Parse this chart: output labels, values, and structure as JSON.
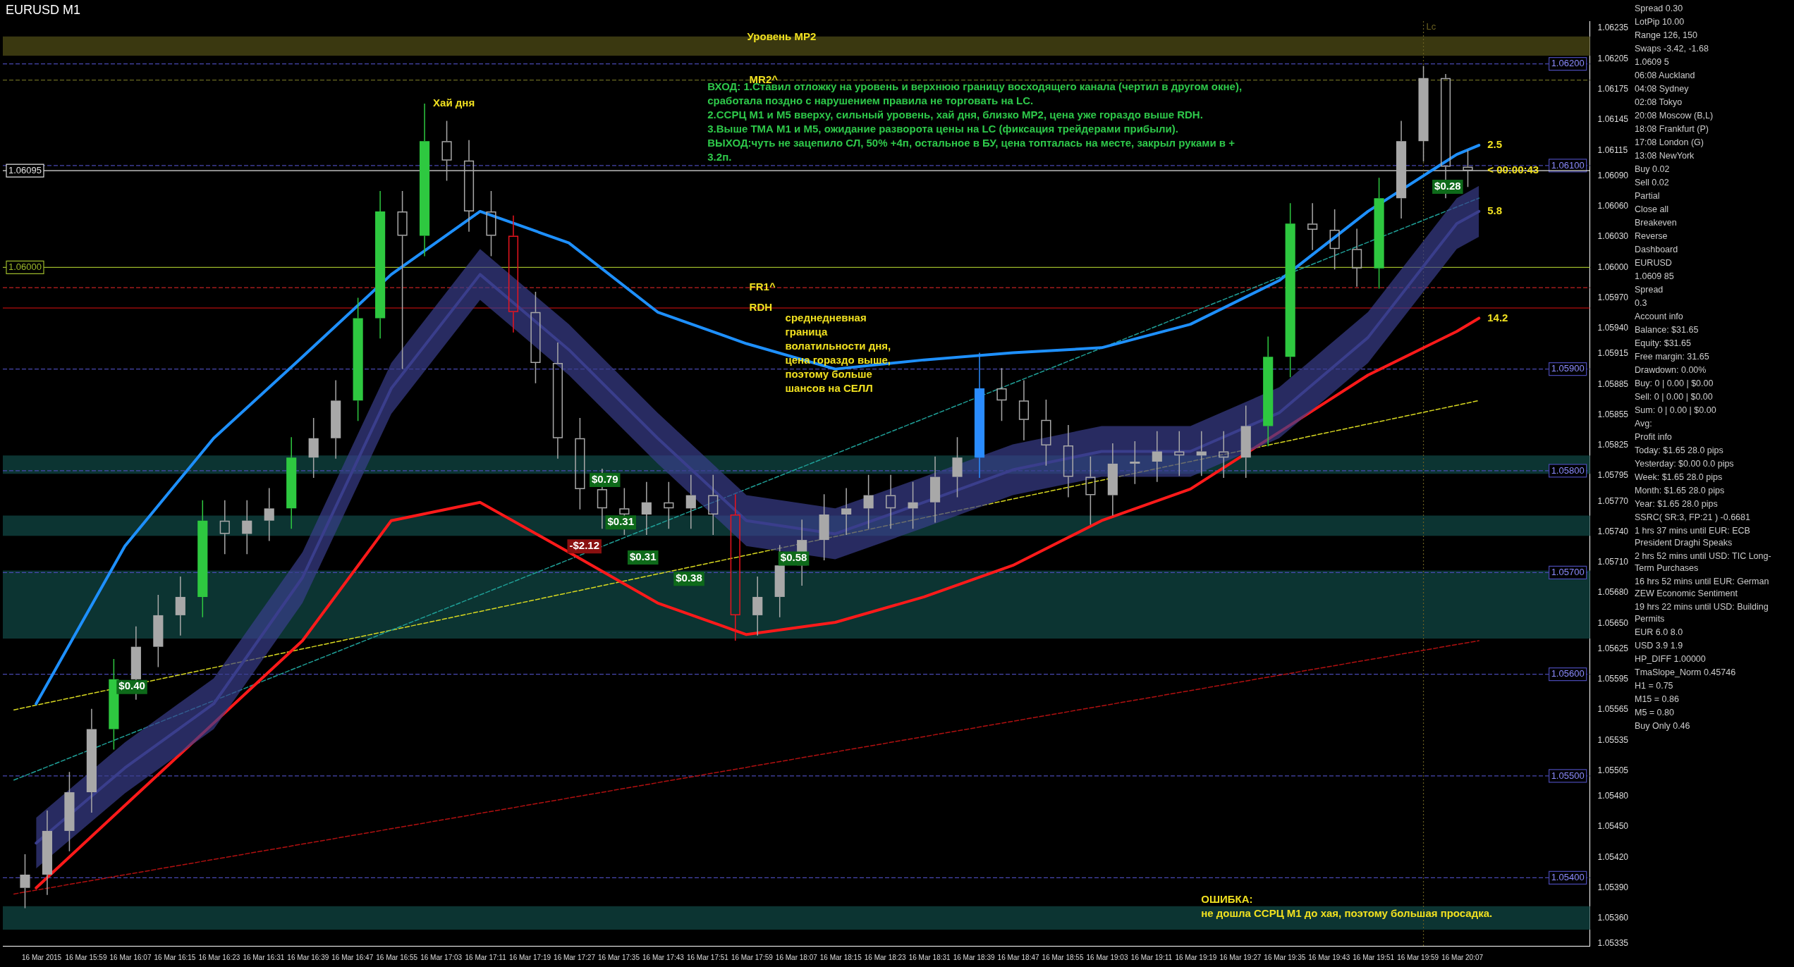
{
  "chart_data": {
    "type": "candlestick",
    "title": "EURUSD M1",
    "x": [
      "2015-03-16T15:48",
      "2015-03-16T15:52",
      "2015-03-16T15:56",
      "2015-03-16T16:00",
      "2015-03-16T16:04",
      "2015-03-16T16:08",
      "2015-03-16T16:12",
      "2015-03-16T16:16",
      "2015-03-16T16:20",
      "2015-03-16T16:24",
      "2015-03-16T16:28",
      "2015-03-16T16:32",
      "2015-03-16T16:36",
      "2015-03-16T16:40",
      "2015-03-16T16:44",
      "2015-03-16T16:48",
      "2015-03-16T16:52",
      "2015-03-16T16:56",
      "2015-03-16T17:00",
      "2015-03-16T17:04",
      "2015-03-16T17:08",
      "2015-03-16T17:12",
      "2015-03-16T17:16",
      "2015-03-16T17:20",
      "2015-03-16T17:24",
      "2015-03-16T17:28",
      "2015-03-16T17:32",
      "2015-03-16T17:36",
      "2015-03-16T17:40",
      "2015-03-16T17:44",
      "2015-03-16T17:48",
      "2015-03-16T17:52",
      "2015-03-16T17:56",
      "2015-03-16T18:00",
      "2015-03-16T18:04",
      "2015-03-16T18:08",
      "2015-03-16T18:12",
      "2015-03-16T18:16",
      "2015-03-16T18:20",
      "2015-03-16T18:24",
      "2015-03-16T18:28",
      "2015-03-16T18:32",
      "2015-03-16T18:36",
      "2015-03-16T18:40",
      "2015-03-16T18:44",
      "2015-03-16T18:48",
      "2015-03-16T18:52",
      "2015-03-16T18:56",
      "2015-03-16T19:00",
      "2015-03-16T19:04",
      "2015-03-16T19:08",
      "2015-03-16T19:12",
      "2015-03-16T19:16",
      "2015-03-16T19:20",
      "2015-03-16T19:24",
      "2015-03-16T19:28",
      "2015-03-16T19:32",
      "2015-03-16T19:36",
      "2015-03-16T19:40",
      "2015-03-16T19:44",
      "2015-03-16T19:48",
      "2015-03-16T19:52",
      "2015-03-16T19:56",
      "2015-03-16T20:00",
      "2015-03-16T20:04",
      "2015-03-16T20:08"
    ],
    "ohlc": [
      [
        1.0539,
        1.05423,
        1.0537,
        1.05403
      ],
      [
        1.05403,
        1.05466,
        1.05383,
        1.05446
      ],
      [
        1.05446,
        1.05504,
        1.05426,
        1.05484
      ],
      [
        1.05484,
        1.05566,
        1.05464,
        1.05546
      ],
      [
        1.05546,
        1.05615,
        1.05526,
        1.05595
      ],
      [
        1.05595,
        1.05647,
        1.05575,
        1.05627
      ],
      [
        1.05627,
        1.05678,
        1.05607,
        1.05658
      ],
      [
        1.05658,
        1.05696,
        1.05638,
        1.05676
      ],
      [
        1.05676,
        1.05771,
        1.05656,
        1.05751
      ],
      [
        1.05751,
        1.05771,
        1.05718,
        1.05738
      ],
      [
        1.05738,
        1.05771,
        1.05718,
        1.05751
      ],
      [
        1.05751,
        1.05783,
        1.05731,
        1.05763
      ],
      [
        1.05763,
        1.05833,
        1.05743,
        1.05813
      ],
      [
        1.05813,
        1.05852,
        1.05793,
        1.05832
      ],
      [
        1.05832,
        1.05889,
        1.05812,
        1.05869
      ],
      [
        1.05869,
        1.0597,
        1.05849,
        1.0595
      ],
      [
        1.0595,
        1.06075,
        1.0593,
        1.06055
      ],
      [
        1.06055,
        1.06075,
        1.059,
        1.06031
      ],
      [
        1.06031,
        1.06161,
        1.06011,
        1.06124
      ],
      [
        1.06124,
        1.06144,
        1.06085,
        1.06105
      ],
      [
        1.06105,
        1.06125,
        1.06035,
        1.06055
      ],
      [
        1.06055,
        1.06075,
        1.06011,
        1.06031
      ],
      [
        1.06031,
        1.06051,
        1.05936,
        1.05956
      ],
      [
        1.05956,
        1.05976,
        1.05886,
        1.05906
      ],
      [
        1.05906,
        1.05926,
        1.05812,
        1.05832
      ],
      [
        1.05832,
        1.05852,
        1.05762,
        1.05782
      ],
      [
        1.05782,
        1.05802,
        1.05743,
        1.05763
      ],
      [
        1.05763,
        1.05783,
        1.05737,
        1.05757
      ],
      [
        1.05757,
        1.05789,
        1.05737,
        1.05769
      ],
      [
        1.05769,
        1.05789,
        1.05743,
        1.05763
      ],
      [
        1.05763,
        1.05796,
        1.05743,
        1.05776
      ],
      [
        1.05776,
        1.05796,
        1.05737,
        1.05757
      ],
      [
        1.05757,
        1.05777,
        1.05633,
        1.05658
      ],
      [
        1.05658,
        1.05696,
        1.05638,
        1.05676
      ],
      [
        1.05676,
        1.05727,
        1.05656,
        1.05707
      ],
      [
        1.05707,
        1.05752,
        1.05687,
        1.05732
      ],
      [
        1.05732,
        1.05777,
        1.05712,
        1.05757
      ],
      [
        1.05757,
        1.05783,
        1.05737,
        1.05763
      ],
      [
        1.05763,
        1.05796,
        1.05743,
        1.05776
      ],
      [
        1.05776,
        1.05796,
        1.05743,
        1.05763
      ],
      [
        1.05763,
        1.05789,
        1.05743,
        1.05769
      ],
      [
        1.05769,
        1.05814,
        1.05749,
        1.05794
      ],
      [
        1.05794,
        1.05833,
        1.05774,
        1.05813
      ],
      [
        1.05813,
        1.05916,
        1.05793,
        1.05881
      ],
      [
        1.05881,
        1.05901,
        1.05849,
        1.05869
      ],
      [
        1.05869,
        1.05889,
        1.0583,
        1.0585
      ],
      [
        1.0585,
        1.0587,
        1.05805,
        1.05825
      ],
      [
        1.05825,
        1.05845,
        1.05774,
        1.05794
      ],
      [
        1.05794,
        1.05814,
        1.05747,
        1.05776
      ],
      [
        1.05776,
        1.05827,
        1.05756,
        1.05807
      ],
      [
        1.05807,
        1.05829,
        1.05787,
        1.05809
      ],
      [
        1.05809,
        1.05839,
        1.05789,
        1.05819
      ],
      [
        1.05819,
        1.05839,
        1.05795,
        1.05815
      ],
      [
        1.05815,
        1.05839,
        1.05795,
        1.05819
      ],
      [
        1.05819,
        1.05839,
        1.05793,
        1.05813
      ],
      [
        1.05813,
        1.05864,
        1.05793,
        1.05844
      ],
      [
        1.05844,
        1.05932,
        1.05824,
        1.05912
      ],
      [
        1.05912,
        1.06063,
        1.05892,
        1.06043
      ],
      [
        1.06043,
        1.06063,
        1.06017,
        1.06037
      ],
      [
        1.06037,
        1.06057,
        1.05998,
        1.06018
      ],
      [
        1.06018,
        1.06038,
        1.05981,
        1.05999
      ],
      [
        1.05999,
        1.06088,
        1.05979,
        1.06068
      ],
      [
        1.06068,
        1.06144,
        1.06048,
        1.06124
      ],
      [
        1.06124,
        1.06198,
        1.06104,
        1.06186
      ],
      [
        1.06186,
        1.0619,
        1.06068,
        1.06099
      ],
      [
        1.06099,
        1.06115,
        1.06079,
        1.06095
      ]
    ],
    "colors": [
      "#a8a8a8",
      "#a8a8a8",
      "#a8a8a8",
      "#a8a8a8",
      "#2ec840",
      "#a8a8a8",
      "#a8a8a8",
      "#a8a8a8",
      "#2ec840",
      "#a8a8a8",
      "#a8a8a8",
      "#a8a8a8",
      "#2ec840",
      "#a8a8a8",
      "#a8a8a8",
      "#2ec840",
      "#2ec840",
      "#a8a8a8",
      "#2ec840",
      "#a8a8a8",
      "#a8a8a8",
      "#a8a8a8",
      "#e8141e",
      "#a8a8a8",
      "#a8a8a8",
      "#a8a8a8",
      "#a8a8a8",
      "#a8a8a8",
      "#a8a8a8",
      "#a8a8a8",
      "#a8a8a8",
      "#a8a8a8",
      "#e8141e",
      "#a8a8a8",
      "#a8a8a8",
      "#a8a8a8",
      "#a8a8a8",
      "#a8a8a8",
      "#a8a8a8",
      "#a8a8a8",
      "#a8a8a8",
      "#a8a8a8",
      "#a8a8a8",
      "#2a8cff",
      "#a8a8a8",
      "#a8a8a8",
      "#a8a8a8",
      "#a8a8a8",
      "#a8a8a8",
      "#a8a8a8",
      "#a8a8a8",
      "#a8a8a8",
      "#a8a8a8",
      "#a8a8a8",
      "#a8a8a8",
      "#a8a8a8",
      "#2ec840",
      "#2ec840",
      "#a8a8a8",
      "#a8a8a8",
      "#a8a8a8",
      "#2ec840",
      "#a8a8a8",
      "#a8a8a8",
      "#a8a8a8",
      "#a8a8a8"
    ],
    "series": [
      {
        "type": "line",
        "color": "#3a3e8c",
        "x": [
          "2015-03-16T15:50",
          "2015-03-16T16:06",
          "2015-03-16T16:22",
          "2015-03-16T16:38",
          "2015-03-16T16:54",
          "2015-03-16T17:10",
          "2015-03-16T17:26",
          "2015-03-16T17:42",
          "2015-03-16T17:58",
          "2015-03-16T18:14",
          "2015-03-16T18:30",
          "2015-03-16T18:46",
          "2015-03-16T19:02",
          "2015-03-16T19:18",
          "2015-03-16T19:34",
          "2015-03-16T19:50",
          "2015-03-16T20:06",
          "2015-03-16T20:10"
        ],
        "values": [
          1.05434,
          1.05508,
          1.05571,
          1.05695,
          1.05881,
          1.05993,
          1.05919,
          1.05832,
          1.05751,
          1.05738,
          1.05769,
          1.05801,
          1.05819,
          1.05819,
          1.05857,
          1.05931,
          1.06043,
          1.06055
        ],
        "lower": [
          1.05409,
          1.05483,
          1.05546,
          1.0567,
          1.05856,
          1.05968,
          1.05894,
          1.05807,
          1.05726,
          1.05713,
          1.05744,
          1.05776,
          1.05794,
          1.05794,
          1.05832,
          1.05906,
          1.06018,
          1.0603
        ],
        "upper": [
          1.05459,
          1.05533,
          1.05596,
          1.0572,
          1.05906,
          1.06018,
          1.05944,
          1.05857,
          1.05776,
          1.05763,
          1.05794,
          1.05826,
          1.05844,
          1.05844,
          1.05882,
          1.05956,
          1.06068,
          1.0608
        ]
      },
      {
        "type": "line",
        "color": "#1e90ff",
        "x": [
          "2015-03-16T15:50",
          "2015-03-16T16:06",
          "2015-03-16T16:22",
          "2015-03-16T16:38",
          "2015-03-16T16:54",
          "2015-03-16T17:10",
          "2015-03-16T17:26",
          "2015-03-16T17:42",
          "2015-03-16T17:58",
          "2015-03-16T18:14",
          "2015-03-16T18:30",
          "2015-03-16T18:46",
          "2015-03-16T19:02",
          "2015-03-16T19:18",
          "2015-03-16T19:34",
          "2015-03-16T19:50",
          "2015-03-16T20:06",
          "2015-03-16T20:10"
        ],
        "values": [
          1.05571,
          1.05726,
          1.05832,
          1.05912,
          1.05993,
          1.06055,
          1.06024,
          1.05956,
          1.05925,
          1.059,
          1.05909,
          1.05916,
          1.05921,
          1.05944,
          1.05987,
          1.06055,
          1.06111,
          1.0612
        ]
      },
      {
        "type": "line",
        "color": "#ff1a1a",
        "x": [
          "2015-03-16T15:50",
          "2015-03-16T16:06",
          "2015-03-16T16:22",
          "2015-03-16T16:38",
          "2015-03-16T16:54",
          "2015-03-16T17:10",
          "2015-03-16T17:26",
          "2015-03-16T17:42",
          "2015-03-16T17:58",
          "2015-03-16T18:14",
          "2015-03-16T18:30",
          "2015-03-16T18:46",
          "2015-03-16T19:02",
          "2015-03-16T19:18",
          "2015-03-16T19:34",
          "2015-03-16T19:50",
          "2015-03-16T20:06",
          "2015-03-16T20:10"
        ],
        "values": [
          1.0539,
          1.05471,
          1.05552,
          1.05633,
          1.05751,
          1.05769,
          1.0572,
          1.0567,
          1.05639,
          1.05651,
          1.05676,
          1.05707,
          1.05751,
          1.05782,
          1.05838,
          1.05894,
          1.05937,
          1.0595
        ]
      },
      {
        "type": "line",
        "color": "#1f9e96",
        "line_style": "dashed",
        "x": [
          "2015-03-16T15:46",
          "2015-03-16T20:10"
        ],
        "values": [
          1.05496,
          1.06068
        ]
      },
      {
        "type": "line",
        "color": "#d8d820",
        "line_style": "dashed",
        "x": [
          "2015-03-16T15:46",
          "2015-03-16T20:10"
        ],
        "values": [
          1.05565,
          1.05869
        ]
      },
      {
        "type": "line",
        "color": "#b01010",
        "line_style": "dashed",
        "x": [
          "2015-03-16T15:46",
          "2015-03-16T20:10"
        ],
        "values": [
          1.05384,
          1.05633
        ]
      }
    ],
    "xlim": [
      "2015-03-16T15:44",
      "2015-03-16T20:30"
    ],
    "xticks": [
      {
        "value": "2015-03-16T15:51",
        "label": "16 Mar 2015"
      },
      {
        "value": "2015-03-16T15:59",
        "label": "16 Mar 15:59"
      },
      {
        "value": "2015-03-16T16:07",
        "label": "16 Mar 16:07"
      },
      {
        "value": "2015-03-16T16:15",
        "label": "16 Mar 16:15"
      },
      {
        "value": "2015-03-16T16:23",
        "label": "16 Mar 16:23"
      },
      {
        "value": "2015-03-16T16:31",
        "label": "16 Mar 16:31"
      },
      {
        "value": "2015-03-16T16:39",
        "label": "16 Mar 16:39"
      },
      {
        "value": "2015-03-16T16:47",
        "label": "16 Mar 16:47"
      },
      {
        "value": "2015-03-16T16:55",
        "label": "16 Mar 16:55"
      },
      {
        "value": "2015-03-16T17:03",
        "label": "16 Mar 17:03"
      },
      {
        "value": "2015-03-16T17:11",
        "label": "16 Mar 17:11"
      },
      {
        "value": "2015-03-16T17:19",
        "label": "16 Mar 17:19"
      },
      {
        "value": "2015-03-16T17:27",
        "label": "16 Mar 17:27"
      },
      {
        "value": "2015-03-16T17:35",
        "label": "16 Mar 17:35"
      },
      {
        "value": "2015-03-16T17:43",
        "label": "16 Mar 17:43"
      },
      {
        "value": "2015-03-16T17:51",
        "label": "16 Mar 17:51"
      },
      {
        "value": "2015-03-16T17:59",
        "label": "16 Mar 17:59"
      },
      {
        "value": "2015-03-16T18:07",
        "label": "16 Mar 18:07"
      },
      {
        "value": "2015-03-16T18:15",
        "label": "16 Mar 18:15"
      },
      {
        "value": "2015-03-16T18:23",
        "label": "16 Mar 18:23"
      },
      {
        "value": "2015-03-16T18:31",
        "label": "16 Mar 18:31"
      },
      {
        "value": "2015-03-16T18:39",
        "label": "16 Mar 18:39"
      },
      {
        "value": "2015-03-16T18:47",
        "label": "16 Mar 18:47"
      },
      {
        "value": "2015-03-16T18:55",
        "label": "16 Mar 18:55"
      },
      {
        "value": "2015-03-16T19:03",
        "label": "16 Mar 19:03"
      },
      {
        "value": "2015-03-16T19:11",
        "label": "16 Mar 19:11"
      },
      {
        "value": "2015-03-16T19:19",
        "label": "16 Mar 19:19"
      },
      {
        "value": "2015-03-16T19:27",
        "label": "16 Mar 19:27"
      },
      {
        "value": "2015-03-16T19:35",
        "label": "16 Mar 19:35"
      },
      {
        "value": "2015-03-16T19:43",
        "label": "16 Mar 19:43"
      },
      {
        "value": "2015-03-16T19:51",
        "label": "16 Mar 19:51"
      },
      {
        "value": "2015-03-16T19:59",
        "label": "16 Mar 19:59"
      },
      {
        "value": "2015-03-16T20:07",
        "label": "16 Mar 20:07"
      }
    ],
    "ylim": [
      1.05333,
      1.06242
    ],
    "yticks": [
      1.06235,
      1.06205,
      1.06175,
      1.06145,
      1.06115,
      {
        "value": 1.0609,
        "label": "1.06090"
      },
      {
        "value": 1.0606,
        "label": "1.06060"
      },
      {
        "value": 1.0603,
        "label": "1.06030"
      },
      {
        "value": 1.06,
        "label": "1.06000"
      },
      {
        "value": 1.0597,
        "label": "1.05970"
      },
      {
        "value": 1.0594,
        "label": "1.05940"
      },
      1.05915,
      1.05885,
      1.05855,
      1.05825,
      1.05795,
      {
        "value": 1.0577,
        "label": "1.05770"
      },
      {
        "value": 1.0574,
        "label": "1.05740"
      },
      {
        "value": 1.0571,
        "label": "1.05710"
      },
      {
        "value": 1.0568,
        "label": "1.05680"
      },
      {
        "value": 1.0565,
        "label": "1.05650"
      },
      1.05625,
      1.05595,
      1.05565,
      1.05535,
      1.05505,
      {
        "value": 1.0548,
        "label": "1.05480"
      },
      {
        "value": 1.0545,
        "label": "1.05450"
      },
      {
        "value": 1.0542,
        "label": "1.05420"
      },
      {
        "value": 1.0539,
        "label": "1.05390"
      },
      {
        "value": 1.0536,
        "label": "1.05360"
      },
      1.05335
    ],
    "ref_lines": [
      {
        "axis": "y",
        "value": 1.062,
        "label": "1.06200",
        "color": "#4848b0",
        "line_style": "dashed"
      },
      {
        "axis": "y",
        "value": 1.06184,
        "color": "#6a6a20",
        "line_style": "dashed"
      },
      {
        "axis": "y",
        "value": 1.061,
        "label": "1.06100",
        "color": "#4848b0",
        "line_style": "dashed"
      },
      {
        "axis": "y",
        "value": 1.06095,
        "label": "1.06095",
        "color": "#e0e0e0",
        "line_style": "solid"
      },
      {
        "axis": "y",
        "value": 1.06,
        "label": "1.06000",
        "color": "#9cb82a",
        "line_style": "solid"
      },
      {
        "axis": "y",
        "value": 1.0598,
        "color": "#c02020",
        "line_style": "dashed"
      },
      {
        "axis": "y",
        "value": 1.0596,
        "color": "#e01010",
        "line_style": "solid"
      },
      {
        "axis": "y",
        "value": 1.059,
        "label": "1.05900",
        "color": "#4848b0",
        "line_style": "dashed"
      },
      {
        "axis": "y",
        "value": 1.058,
        "label": "1.05800",
        "color": "#4848b0",
        "line_style": "dashed"
      },
      {
        "axis": "y",
        "value": 1.057,
        "label": "1.05700",
        "color": "#4848b0",
        "line_style": "dashed"
      },
      {
        "axis": "y",
        "value": 1.056,
        "label": "1.05600",
        "color": "#4848b0",
        "line_style": "dashed"
      },
      {
        "axis": "y",
        "value": 1.055,
        "label": "1.05500",
        "color": "#4848b0",
        "line_style": "dashed"
      },
      {
        "axis": "y",
        "value": 1.054,
        "label": "1.05400",
        "color": "#4848b0",
        "line_style": "dashed"
      },
      {
        "axis": "x",
        "value": "2015-03-16T20:00",
        "label": "Lc",
        "color": "#6a6020",
        "line_style": "dotted"
      }
    ],
    "bands": [
      {
        "axis": "y",
        "from": 1.06208,
        "to": 1.06227,
        "color": "#3a3810"
      },
      {
        "axis": "y",
        "from": 1.05797,
        "to": 1.05815,
        "color": "#0c3432"
      },
      {
        "axis": "y",
        "from": 1.05736,
        "to": 1.05756,
        "color": "#0c3432"
      },
      {
        "axis": "y",
        "from": 1.05635,
        "to": 1.05702,
        "color": "#0c3432"
      },
      {
        "axis": "y",
        "from": 1.05349,
        "to": 1.05372,
        "color": "#0c3432"
      }
    ],
    "annotations": [
      {
        "text": "MR2^",
        "x": "2015-03-16T17:57",
        "y": 1.06184
      },
      {
        "text": "Хай дня",
        "x": "2015-03-16T17:00",
        "y": 1.06161
      },
      {
        "text": "FR1^",
        "x": "2015-03-16T17:57",
        "y": 1.0598
      },
      {
        "text": "RDH",
        "x": "2015-03-16T17:57",
        "y": 1.0596
      },
      {
        "text": "2.5",
        "x": "2015-03-16T20:10",
        "y": 1.0612
      },
      {
        "text": "< 00:00:43",
        "x": "2015-03-16T20:10",
        "y": 1.06095
      },
      {
        "text": "5.8",
        "x": "2015-03-16T20:10",
        "y": 1.06055
      },
      {
        "text": "14.2",
        "x": "2015-03-16T20:10",
        "y": 1.0595
      },
      "Уровень MP2",
      "ВХОД: 1.Ставил отложку на уровень и верхнюю границу восходящего канала (чертил в другом окне),\nсработала поздно с нарушением правила не торговать на LC.\n2.ССРЦ М1 и М5 вверху, сильный уровень, хай дня, близко МР2, цена уже гораздо выше RDH.\n3.Выше ТМА М1 и М5, ожидание разворота цены на LC (фиксация трейдерами прибыли).\nВЫХОД:чуть не зацепило СЛ, 50% +4п, остальное в БУ, цена топталась на месте, закрыл руками в +\n3.2п.",
      "среднедневная\nграница\nволатильности дня,\nцена гораздо выше,\nпоэтому больше\nшансов на СЕЛЛ",
      "ОШИБКА:\nне дошла ССРЦ М1 до хая, поэтому большая просадка.",
      "$0.79",
      "$0.31",
      "$0.31",
      "-$2.12",
      "$0.58",
      "$0.38",
      "$0.40",
      "$0.28",
      "Spread 0.30",
      "LotPip 10.00",
      "Range 126, 150",
      "Swaps -3.42, -1.68",
      "1.0609 5",
      "06:08 Auckland",
      "04:08 Sydney",
      "02:08 Tokyo",
      "20:08 Moscow (B,L)",
      "18:08 Frankfurt (P)",
      "17:08 London (G)",
      "13:08 NewYork",
      "Buy 0.02",
      "Sell 0.02",
      "Partial",
      "Close all",
      "Breakeven",
      "Reverse",
      "Dashboard",
      "EURUSD",
      "1.0609 85",
      "Spread",
      "0.3",
      "Account info",
      "Balance: $31.65",
      "Equity: $31.65",
      "Free margin: 31.65",
      "Drawdown: 0.00%",
      "Buy: 0 | 0.00 | $0.00",
      "Sell: 0 | 0.00 | $0.00",
      "Sum: 0 | 0.00 | $0.00",
      "Avg:",
      "Profit info",
      "Today: $1.65 28.0 pips",
      "Yesterday: $0.00 0.0 pips",
      "Week: $1.65 28.0 pips",
      "Month: $1.65 28.0 pips",
      "Year: $1.65 28.0 pips",
      "SSRC( SR:3, FP:21 ) -0.6681",
      "1 hrs 37 mins until EUR: ECB President Draghi Speaks",
      "2 hrs 52 mins until USD: TIC Long-Term Purchases",
      "16 hrs 52 mins until EUR: German ZEW Economic Sentiment",
      "19 hrs 22 mins until USD: Building Permits",
      "EUR 6.0 8.0",
      "USD 3.9 1.9",
      "HP_DIFF 1.00000",
      "TmaSlope_Norm 0.45746",
      "H1 = 0.75",
      "M15 = 0.86",
      "M5 = 0.80",
      "Buy Only 0.46"
    ]
  }
}
